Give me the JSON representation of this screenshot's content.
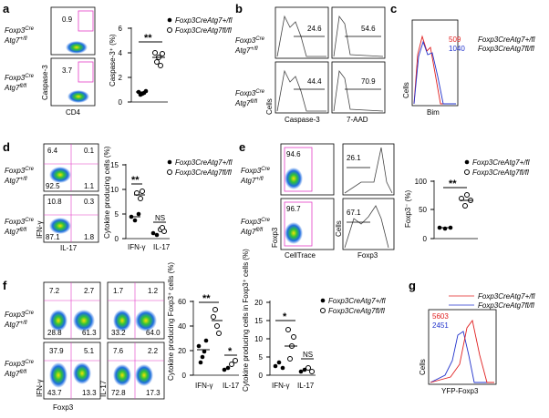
{
  "colors": {
    "pink": "#e33cc6",
    "red": "#e02020",
    "blue": "#2233cc",
    "black": "#000000",
    "grey": "#666666"
  },
  "panels": {
    "a": {
      "label": "a",
      "quads": [
        "0.9",
        "3.7"
      ],
      "xaxis": "CD4",
      "yaxis": "Caspase-3",
      "rows": [
        {
          "gene": "Foxp3",
          "sup": "Cre",
          "atg": "Atg7",
          "atgsup": "+/fl"
        },
        {
          "gene": "Foxp3",
          "sup": "Cre",
          "atg": "Atg7",
          "atgsup": "fl/fl"
        }
      ],
      "ylabel": "Caspase-3⁺ (%)",
      "yticks": [
        "0",
        "2",
        "4",
        "6"
      ],
      "stat": "**",
      "legend": [
        "Foxp3CreAtg7+/fl",
        "Foxp3CreAtg7fl/fl"
      ]
    },
    "b": {
      "label": "b",
      "nums": [
        "24.6",
        "54.6",
        "44.4",
        "70.9"
      ],
      "x1": "Caspase-3",
      "x2": "7-AAD",
      "ylabel": "Cells"
    },
    "c": {
      "label": "c",
      "mfi": [
        "509",
        "1040"
      ],
      "legend": [
        "Foxp3CreAtg7+/fl",
        "Foxp3CreAtg7fl/fl"
      ],
      "x": "Bim",
      "y": "Cells"
    },
    "d": {
      "label": "d",
      "quads": [
        [
          "6.4",
          "0.1",
          "92.5",
          "1.1"
        ],
        [
          "10.8",
          "0.3",
          "87.1",
          "1.8"
        ]
      ],
      "xaxis": "IL-17",
      "yaxis": "IFN-γ",
      "ylabel": "Cytokine producing cells (%)",
      "yticks": [
        "0",
        "5",
        "10",
        "15"
      ],
      "cats": [
        "IFN-γ",
        "IL-17"
      ],
      "stat1": "**",
      "stat2": "NS",
      "legend": [
        "Foxp3CreAtg7+/fl",
        "Foxp3CreAtg7fl/fl"
      ]
    },
    "e": {
      "label": "e",
      "gates": [
        "94.6",
        "96.7"
      ],
      "hist": [
        "26.1",
        "67.1"
      ],
      "x1": "CellTrace",
      "x2": "Foxp3",
      "yaxis": "Foxp3",
      "histy": "Cells",
      "ylabel": "Foxp3⁻ (%)",
      "yticks": [
        "0",
        "50",
        "100"
      ],
      "stat": "**",
      "legend": [
        "Foxp3CreAtg7+/fl",
        "Foxp3CreAtg7fl/fl"
      ]
    },
    "f": {
      "label": "f",
      "quadsL": [
        [
          "7.2",
          "2.7",
          "28.8",
          "61.3"
        ],
        [
          "37.9",
          "5.1",
          "43.7",
          "13.3"
        ]
      ],
      "quadsR": [
        [
          "1.7",
          "1.2",
          "33.2",
          "64.0"
        ],
        [
          "7.6",
          "2.2",
          "72.8",
          "17.3"
        ]
      ],
      "xaxis": "Foxp3",
      "yL": "IFN-γ",
      "yR": "IL-17",
      "ylabel1": "Cytokine producing Foxp3⁺ cells (%)",
      "ylabel2": "Cytokine producing cells in Foxp3⁺ cells (%)",
      "yticks1": [
        "0",
        "20",
        "40",
        "60"
      ],
      "yticks2": [
        "0",
        "5",
        "10",
        "15",
        "20"
      ],
      "cats": [
        "IFN-γ",
        "IL-17"
      ],
      "s1": [
        "**",
        "*"
      ],
      "s2": [
        "*",
        "NS"
      ],
      "legend": [
        "Foxp3CreAtg7+/fl",
        "Foxp3CreAtg7fl/fl"
      ]
    },
    "g": {
      "label": "g",
      "mfi": [
        "5603",
        "2451"
      ],
      "x": "YFP-Foxp3",
      "y": "Cells",
      "legend": [
        "Foxp3CreAtg7+/fl",
        "Foxp3CreAtg7fl/fl"
      ]
    }
  }
}
